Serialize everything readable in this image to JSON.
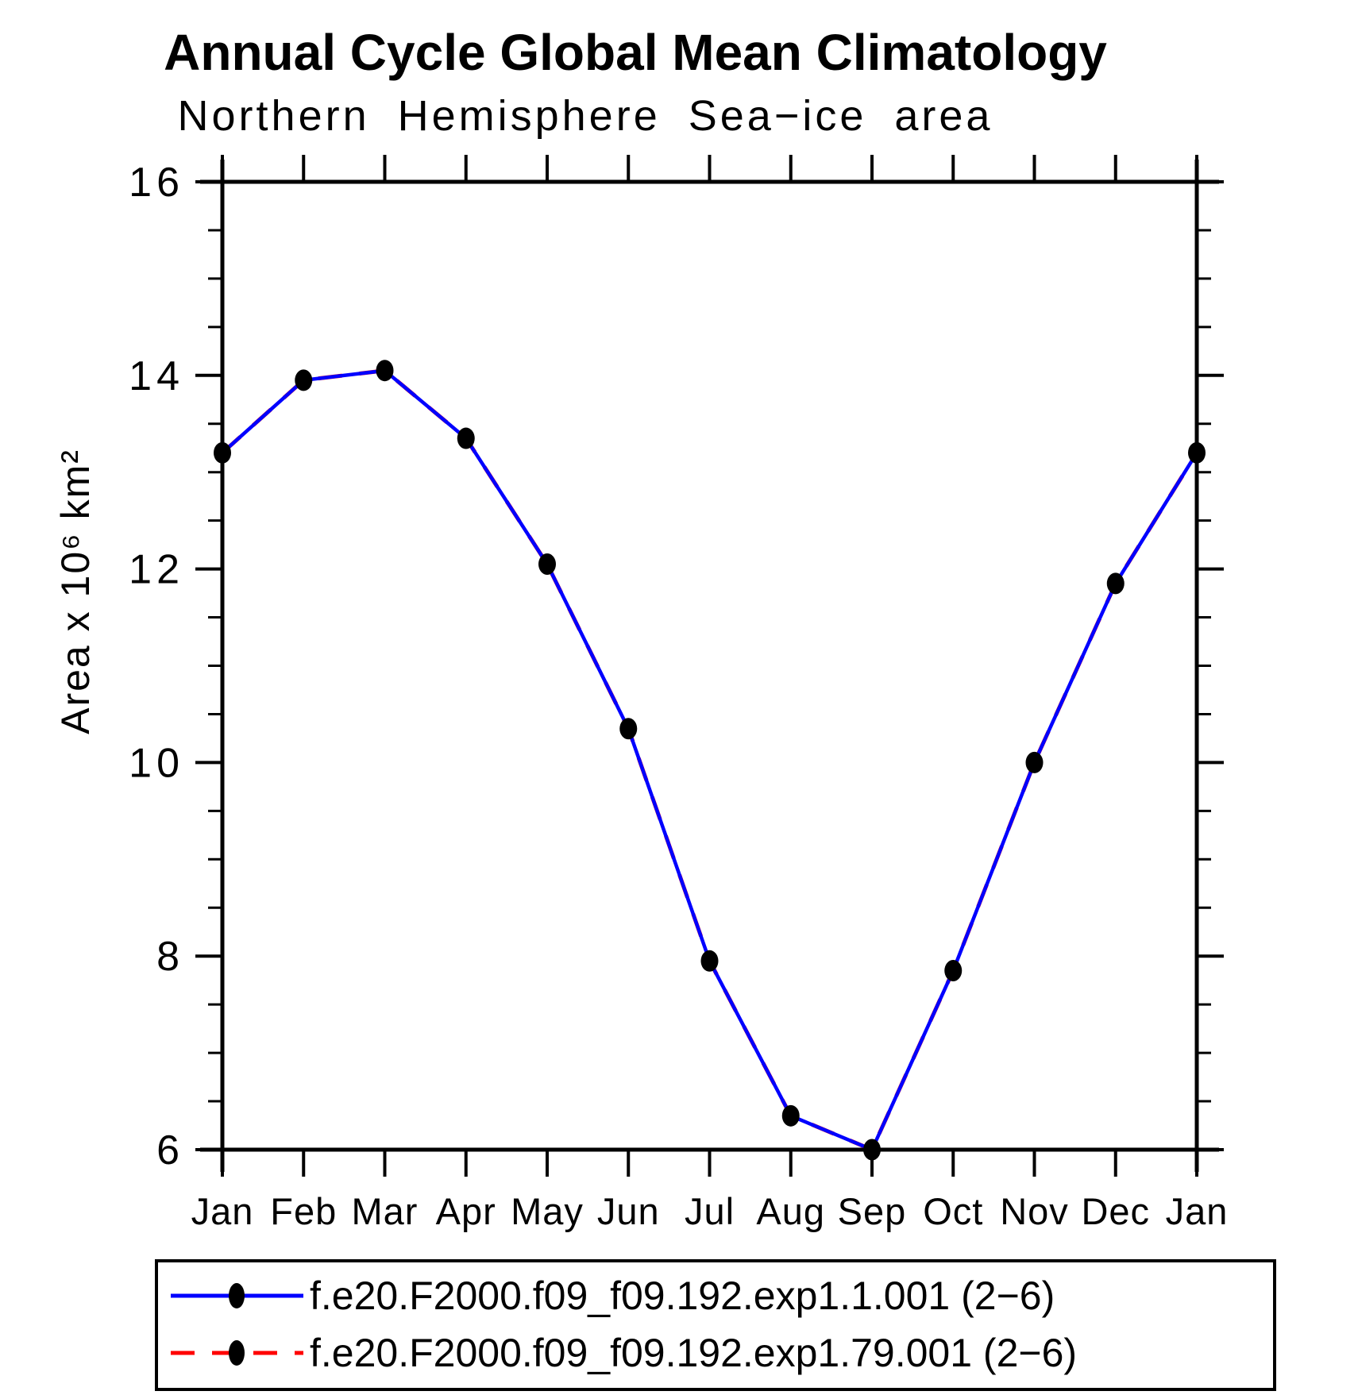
{
  "chart_data": {
    "type": "line",
    "title": "Annual Cycle Global Mean Climatology",
    "subtitle": "Northern Hemisphere Sea−ice area",
    "ylabel": "Area x 10⁶ km²",
    "xlabel": "",
    "categories": [
      "Jan",
      "Feb",
      "Mar",
      "Apr",
      "May",
      "Jun",
      "Jul",
      "Aug",
      "Sep",
      "Oct",
      "Nov",
      "Dec",
      "Jan"
    ],
    "ylim": [
      6,
      16
    ],
    "ytick_major": [
      6,
      8,
      10,
      12,
      14,
      16
    ],
    "ytick_minor_step": 0.5,
    "grid": false,
    "legend_position": "bottom-box",
    "background_color": "#ffffff",
    "axis_color": "#000000",
    "series": [
      {
        "name": "f.e20.F2000.f09_f09.192.exp1.1.001 (2−6)",
        "color": "#0000ff",
        "line_style": "solid",
        "marker": "filled-ellipse",
        "marker_color": "#000000",
        "values": [
          13.2,
          13.95,
          14.05,
          13.35,
          12.05,
          10.35,
          7.95,
          6.35,
          6.0,
          7.85,
          10.0,
          11.85,
          13.2
        ]
      },
      {
        "name": "f.e20.F2000.f09_f09.192.exp1.79.001 (2−6)",
        "color": "#ff0000",
        "line_style": "dashed",
        "marker": "filled-ellipse",
        "marker_color": "#000000",
        "values": [
          13.2,
          13.95,
          14.05,
          13.35,
          12.05,
          10.35,
          7.95,
          6.35,
          6.0,
          7.85,
          10.0,
          11.85,
          13.2
        ]
      }
    ]
  }
}
